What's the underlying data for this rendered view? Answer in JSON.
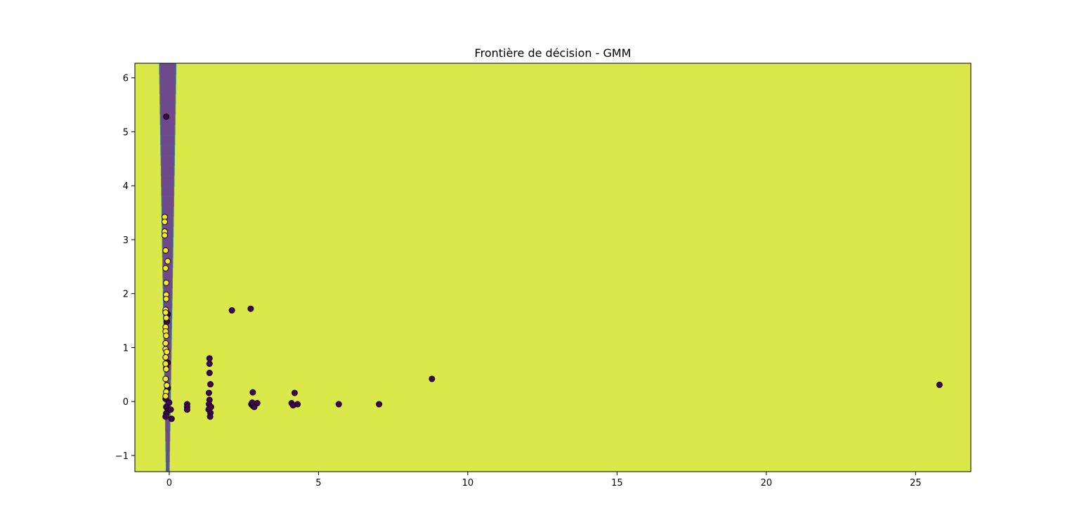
{
  "chart_data": {
    "type": "scatter",
    "title": "Frontière de décision - GMM",
    "xlabel": "",
    "ylabel": "",
    "xlim": [
      -1.15,
      26.85
    ],
    "ylim": [
      -1.3,
      6.27
    ],
    "x_ticks": [
      0,
      5,
      10,
      15,
      20,
      25
    ],
    "y_ticks": [
      -1,
      0,
      1,
      2,
      3,
      4,
      5,
      6
    ],
    "x_tick_labels": [
      "0",
      "5",
      "10",
      "15",
      "20",
      "25"
    ],
    "y_tick_labels": [
      "−1",
      "0",
      "1",
      "2",
      "3",
      "4",
      "5",
      "6"
    ],
    "grid": false,
    "legend": "none",
    "background_region": {
      "description": "decision region, class 1",
      "color": "#dae84a"
    },
    "band_region": {
      "description": "decision region, class 0",
      "color": "#6e4a8c",
      "edge_color": "#3b8a8a",
      "x_center": -0.05,
      "half_width_top": 0.27,
      "half_width_bottom": 0.04,
      "y_range": [
        -1.3,
        6.27
      ]
    },
    "series": [
      {
        "class": 0,
        "color": "#440154",
        "points": [
          [
            -0.1,
            5.28
          ],
          [
            2.1,
            1.69
          ],
          [
            2.73,
            1.72
          ],
          [
            8.8,
            0.42
          ],
          [
            25.8,
            0.31
          ],
          [
            1.35,
            0.8
          ],
          [
            1.35,
            0.7
          ],
          [
            1.35,
            0.53
          ],
          [
            1.38,
            0.32
          ],
          [
            1.33,
            0.16
          ],
          [
            1.35,
            0.03
          ],
          [
            1.33,
            -0.05
          ],
          [
            1.4,
            -0.1
          ],
          [
            1.32,
            -0.15
          ],
          [
            1.38,
            -0.21
          ],
          [
            1.37,
            -0.28
          ],
          [
            0.6,
            -0.05
          ],
          [
            0.6,
            -0.1
          ],
          [
            0.6,
            -0.15
          ],
          [
            2.8,
            0.17
          ],
          [
            2.75,
            -0.05
          ],
          [
            2.8,
            -0.08
          ],
          [
            2.85,
            -0.1
          ],
          [
            2.78,
            -0.02
          ],
          [
            2.95,
            -0.03
          ],
          [
            4.1,
            -0.03
          ],
          [
            4.2,
            0.16
          ],
          [
            4.15,
            -0.07
          ],
          [
            4.3,
            -0.05
          ],
          [
            5.68,
            -0.05
          ],
          [
            7.03,
            -0.05
          ],
          [
            -0.05,
            1.62
          ],
          [
            -0.08,
            1.48
          ],
          [
            -0.05,
            0.72
          ],
          [
            -0.1,
            0.62
          ],
          [
            -0.05,
            0.25
          ],
          [
            -0.12,
            0.05
          ],
          [
            -0.1,
            -0.1
          ],
          [
            -0.05,
            -0.17
          ],
          [
            -0.1,
            -0.22
          ],
          [
            -0.12,
            -0.28
          ],
          [
            0.08,
            -0.32
          ],
          [
            0.0,
            -0.02
          ],
          [
            0.05,
            -0.15
          ]
        ]
      },
      {
        "class": 1,
        "color": "#fde725",
        "points": [
          [
            -0.15,
            3.42
          ],
          [
            -0.15,
            3.33
          ],
          [
            -0.15,
            3.15
          ],
          [
            -0.15,
            3.08
          ],
          [
            -0.12,
            2.8
          ],
          [
            -0.05,
            2.6
          ],
          [
            -0.12,
            2.47
          ],
          [
            -0.1,
            2.2
          ],
          [
            -0.1,
            1.98
          ],
          [
            -0.1,
            1.9
          ],
          [
            -0.12,
            1.7
          ],
          [
            -0.12,
            1.65
          ],
          [
            -0.1,
            1.55
          ],
          [
            -0.12,
            1.38
          ],
          [
            -0.12,
            1.3
          ],
          [
            -0.1,
            1.22
          ],
          [
            -0.12,
            1.08
          ],
          [
            -0.12,
            0.97
          ],
          [
            -0.08,
            0.92
          ],
          [
            -0.12,
            0.82
          ],
          [
            -0.12,
            0.7
          ],
          [
            -0.1,
            0.6
          ],
          [
            -0.12,
            0.42
          ],
          [
            -0.08,
            0.3
          ],
          [
            -0.1,
            0.18
          ],
          [
            -0.12,
            0.1
          ]
        ]
      }
    ]
  }
}
